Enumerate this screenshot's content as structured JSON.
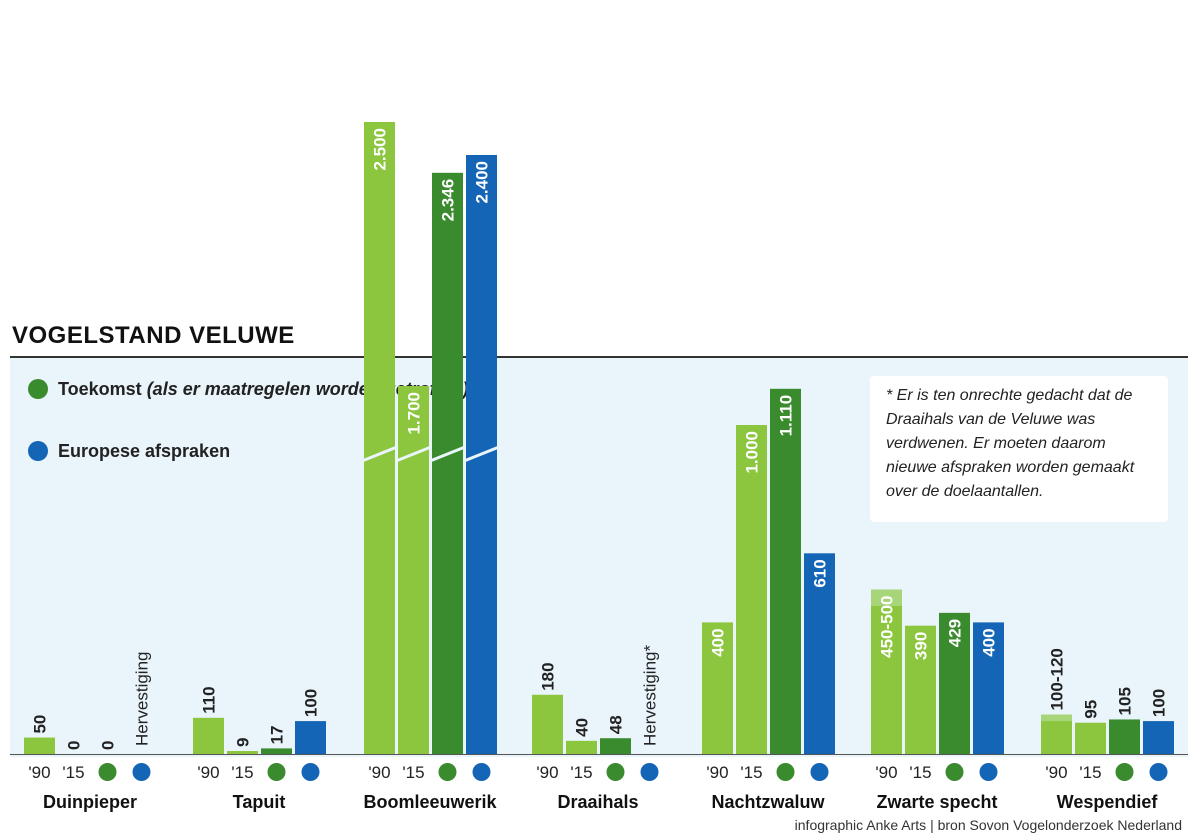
{
  "title": "VOGELSTAND VELUWE",
  "legend": {
    "toekomst": {
      "label_bold": "Toekomst",
      "label_italic": " (als er maatregelen worden getroffen)",
      "color": "#3a8a2e"
    },
    "europees": {
      "label": "Europese afspraken",
      "color": "#1565b6"
    }
  },
  "note": "* Er is ten onrechte gedacht dat de Draaihals van de Veluwe was verdwenen. Er moeten daarom nieuwe afspraken worden gemaakt over de doelaantallen.",
  "credit": "infographic Anke Arts | bron Sovon Vogelonderzoek Nederland",
  "colors": {
    "y1990": "#8cc63f",
    "y2015": "#8cc63f",
    "toekomst": "#3a8a2e",
    "europees": "#1565b6"
  },
  "chart_data": {
    "type": "bar",
    "title": "VOGELSTAND VELUWE",
    "axis_break": true,
    "categories": [
      "Duinpieper",
      "Tapuit",
      "Boomleeuwerik",
      "Draaihals",
      "Nachtzwaluw",
      "Zwarte specht",
      "Wespendief"
    ],
    "x_labels": [
      "'90",
      "'15"
    ],
    "series": [
      {
        "key": "y1990",
        "values": [
          50,
          110,
          2500,
          180,
          400,
          500,
          120
        ],
        "labels": [
          "50",
          "110",
          "2.500",
          "180",
          "400",
          "450-500",
          "100-120"
        ],
        "range_min": [
          null,
          null,
          null,
          null,
          null,
          450,
          100
        ]
      },
      {
        "key": "y2015",
        "values": [
          0,
          9,
          1700,
          40,
          1000,
          390,
          95
        ],
        "labels": [
          "0",
          "9",
          "1.700",
          "40",
          "1.000",
          "390",
          "95"
        ]
      },
      {
        "name": "Toekomst",
        "key": "toekomst",
        "values": [
          0,
          17,
          2346,
          48,
          1110,
          429,
          105
        ],
        "labels": [
          "0",
          "17",
          "2.346",
          "48",
          "1.110",
          "429",
          "105"
        ]
      },
      {
        "name": "Europese afspraken",
        "key": "europees",
        "values": [
          null,
          100,
          2400,
          null,
          610,
          400,
          100
        ],
        "labels": [
          "Hervestiging",
          "100",
          "2.400",
          "Hervestiging*",
          "610",
          "400",
          "100"
        ]
      }
    ]
  }
}
